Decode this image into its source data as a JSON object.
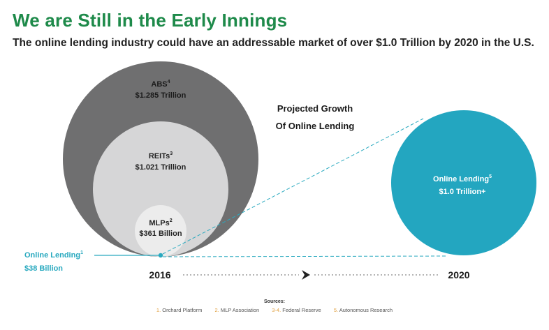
{
  "header": {
    "title": "We are Still in the Early Innings",
    "subtitle": "The online lending industry could have an addressable market of over $1.0 Trillion by 2020 in the U.S."
  },
  "diagram": {
    "projection_title": [
      "Projected Growth",
      "Of Online Lending"
    ],
    "circles": [
      {
        "name": "ABS",
        "sup": "4",
        "value": "$1.285 Trillion",
        "color": "#6f6f70"
      },
      {
        "name": "REITs",
        "sup": "3",
        "value": "$1.021 Trillion",
        "color": "#d6d6d7"
      },
      {
        "name": "MLPs",
        "sup": "2",
        "value": "$361 Billion",
        "color": "#ececec"
      },
      {
        "name": "Online Lending",
        "sup": "1",
        "value": "$38 Billion",
        "color": "#29a9bf"
      }
    ],
    "future_circle": {
      "name": "Online Lending",
      "sup": "5",
      "value": "$1.0 Trillion+",
      "color": "#23a6c0"
    },
    "timeline": {
      "start": "2016",
      "end": "2020"
    }
  },
  "sources": {
    "heading": "Sources:",
    "items": [
      {
        "num": "1.",
        "text": "Orchard Platform"
      },
      {
        "num": "2.",
        "text": "MLP Association"
      },
      {
        "num": "3-4.",
        "text": "Federal Reserve"
      },
      {
        "num": "5.",
        "text": "Autonomous Research"
      }
    ]
  }
}
